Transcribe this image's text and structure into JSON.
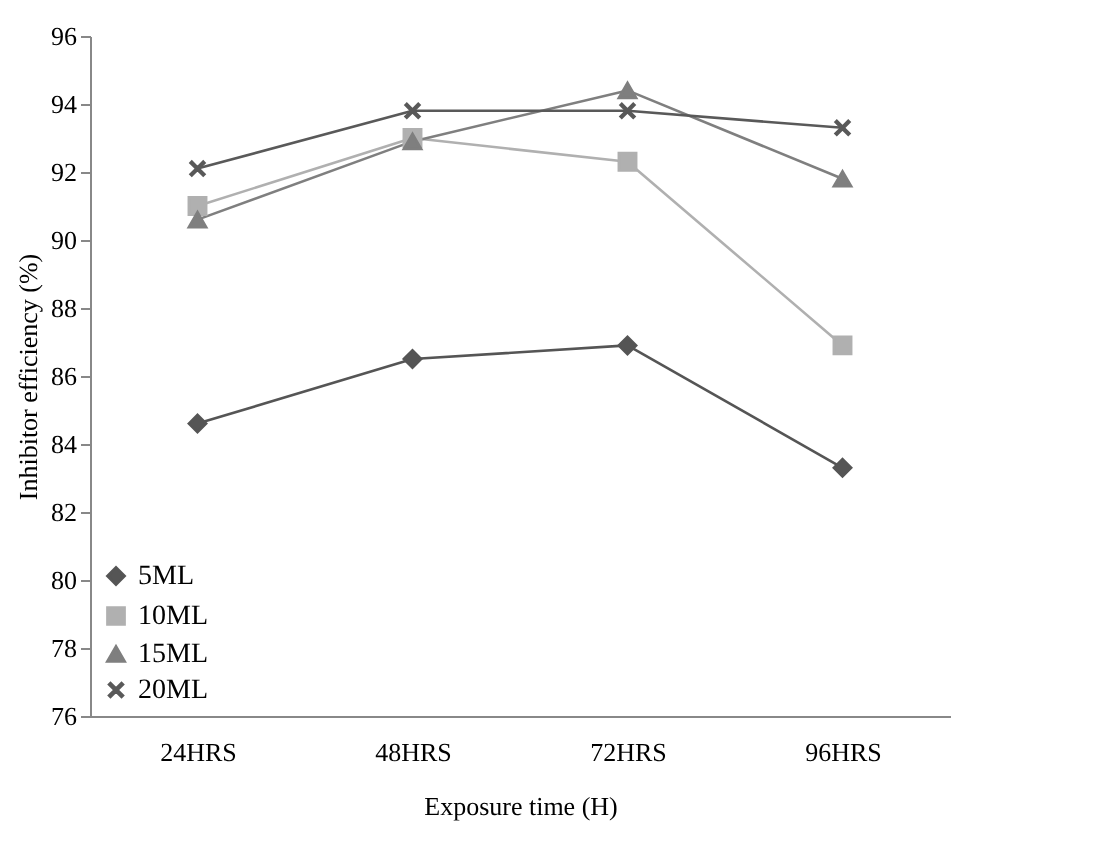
{
  "chart_data": {
    "type": "line",
    "xlabel": "Exposure time (H)",
    "ylabel": "Inhibitor efficiency (%)",
    "categories": [
      "24HRS",
      "48HRS",
      "72HRS",
      "96HRS"
    ],
    "series": [
      {
        "name": "5ML",
        "color": "#555555",
        "marker": "diamond",
        "values": [
          84.6,
          86.5,
          86.9,
          83.3
        ]
      },
      {
        "name": "10ML",
        "color": "#b0b0b0",
        "marker": "square",
        "values": [
          91.0,
          93.0,
          92.3,
          86.9
        ]
      },
      {
        "name": "15ML",
        "color": "#7f7f7f",
        "marker": "triangle",
        "values": [
          90.6,
          92.9,
          94.4,
          91.8
        ]
      },
      {
        "name": "20ML",
        "color": "#595959",
        "marker": "cross",
        "values": [
          92.1,
          93.8,
          93.8,
          93.3
        ]
      }
    ],
    "ylim": [
      76,
      96
    ],
    "yticks": [
      76,
      78,
      80,
      82,
      84,
      86,
      88,
      90,
      92,
      94,
      96
    ],
    "grid": false,
    "legend": "bottom left",
    "line_style": "solid"
  }
}
